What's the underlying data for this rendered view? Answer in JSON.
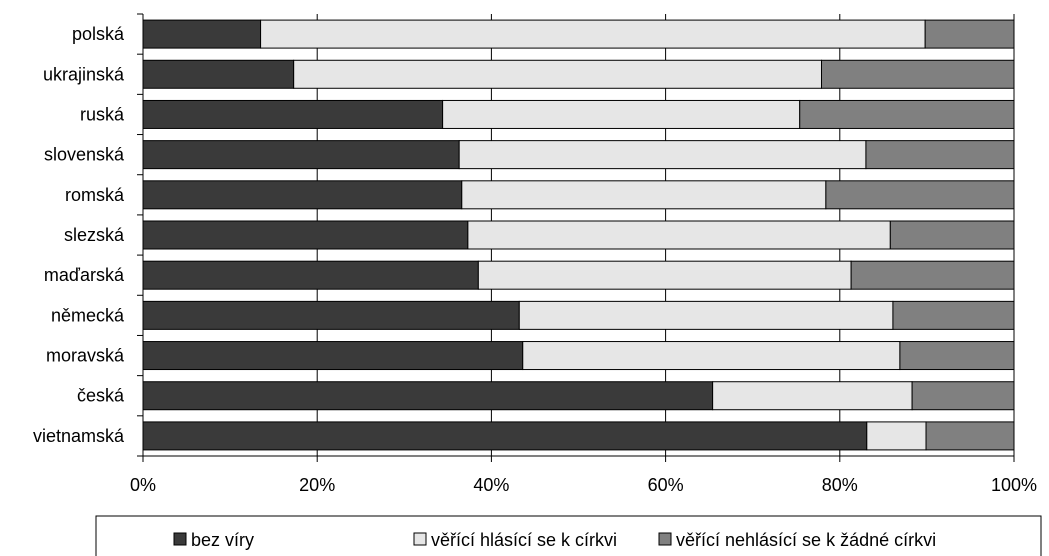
{
  "chart_data": {
    "type": "bar",
    "orientation": "horizontal",
    "stacked": "percent",
    "title": "",
    "xlabel": "",
    "ylabel": "",
    "categories": [
      "polská",
      "ukrajinská",
      "ruská",
      "slovenská",
      "romská",
      "slezská",
      "maďarská",
      "německá",
      "moravská",
      "česká",
      "vietnamská"
    ],
    "series": [
      {
        "name": "bez víry",
        "color": "#3a3a3a",
        "values": [
          13.5,
          17.3,
          34.4,
          36.3,
          36.6,
          37.3,
          38.5,
          43.2,
          43.6,
          65.4,
          83.1
        ]
      },
      {
        "name": "věřící hlásící se k církvi",
        "color": "#e6e6e6",
        "values": [
          76.3,
          60.6,
          41.0,
          46.7,
          41.8,
          48.5,
          42.8,
          42.9,
          43.3,
          22.9,
          6.8
        ]
      },
      {
        "name": "věřící nehlásící se k žádné církvi",
        "color": "#808080",
        "values": [
          10.2,
          22.1,
          24.6,
          17.0,
          21.6,
          14.2,
          18.7,
          13.9,
          13.1,
          11.7,
          10.1
        ]
      }
    ],
    "xlim": [
      0,
      100
    ],
    "xticks": [
      "0%",
      "20%",
      "40%",
      "60%",
      "80%",
      "100%"
    ],
    "grid": {
      "vertical": true,
      "horizontal": false
    },
    "legend_position": "bottom"
  }
}
